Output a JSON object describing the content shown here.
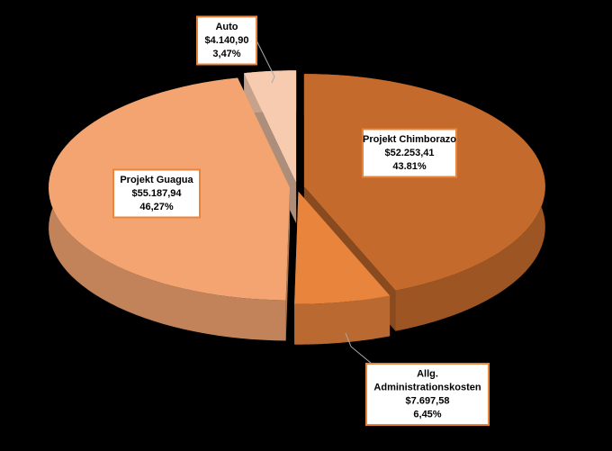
{
  "chart_data": {
    "type": "pie",
    "categories": [
      "Projekt Chimborazo",
      "Allg. Administrationskosten",
      "Projekt Guagua",
      "Auto"
    ],
    "values": [
      43.81,
      6.45,
      46.27,
      3.47
    ],
    "value_labels": [
      "43.81%",
      "6,45%",
      "46,27%",
      "3,47%"
    ],
    "amounts": [
      52253.41,
      7697.58,
      55187.94,
      4140.9
    ],
    "amount_labels": [
      "$52.253,41",
      "$7.697,58",
      "$55.187,94",
      "$4.140,90"
    ],
    "colors": [
      "#c46a2c",
      "#e8843c",
      "#f3a471",
      "#f7cbb0"
    ]
  }
}
